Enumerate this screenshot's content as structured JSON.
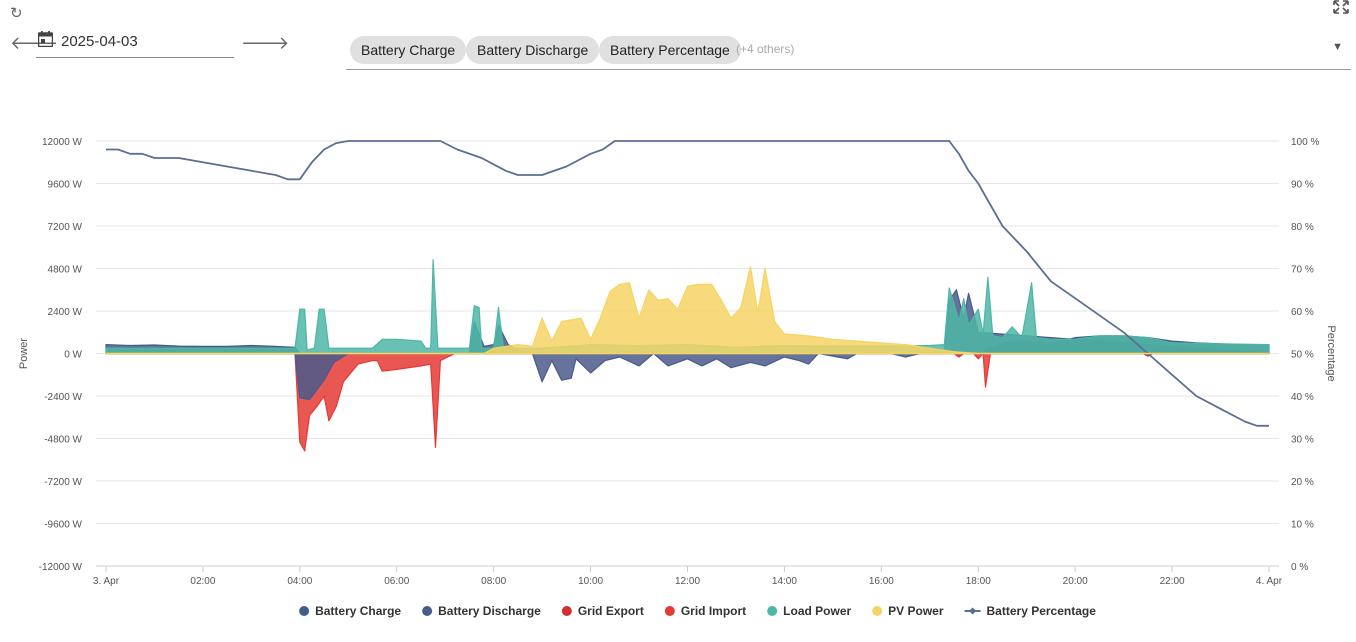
{
  "toolbar": {
    "refresh_icon": "refresh-icon",
    "expand_icon": "fullscreen-icon",
    "prev_icon": "arrow-left-icon",
    "next_icon": "arrow-right-icon",
    "calendar_icon": "calendar-icon",
    "date_value": "2025-04-03"
  },
  "series_select": {
    "chips": [
      "Battery Charge",
      "Battery Discharge",
      "Battery Percentage"
    ],
    "others_label": "(+4 others)"
  },
  "chart_data": {
    "type": "area",
    "x_unit": "hours",
    "xlim": [
      0,
      24
    ],
    "x_ticks": [
      {
        "x": 0,
        "label": "3. Apr"
      },
      {
        "x": 2,
        "label": "02:00"
      },
      {
        "x": 4,
        "label": "04:00"
      },
      {
        "x": 6,
        "label": "06:00"
      },
      {
        "x": 8,
        "label": "08:00"
      },
      {
        "x": 10,
        "label": "10:00"
      },
      {
        "x": 12,
        "label": "12:00"
      },
      {
        "x": 14,
        "label": "14:00"
      },
      {
        "x": 16,
        "label": "16:00"
      },
      {
        "x": 18,
        "label": "18:00"
      },
      {
        "x": 20,
        "label": "20:00"
      },
      {
        "x": 22,
        "label": "22:00"
      },
      {
        "x": 24,
        "label": "4. Apr"
      }
    ],
    "y_left": {
      "label": "Power",
      "ylim": [
        -12000,
        12000
      ],
      "ticks": [
        {
          "v": 12000,
          "label": "12000 W"
        },
        {
          "v": 9600,
          "label": "9600 W"
        },
        {
          "v": 7200,
          "label": "7200 W"
        },
        {
          "v": 4800,
          "label": "4800 W"
        },
        {
          "v": 2400,
          "label": "2400 W"
        },
        {
          "v": 0,
          "label": "0 W"
        },
        {
          "v": -2400,
          "label": "-2400 W"
        },
        {
          "v": -4800,
          "label": "-4800 W"
        },
        {
          "v": -7200,
          "label": "-7200 W"
        },
        {
          "v": -9600,
          "label": "-9600 W"
        },
        {
          "v": -12000,
          "label": "-12000 W"
        }
      ]
    },
    "y_right": {
      "label": "Percentage",
      "ylim": [
        0,
        100
      ],
      "ticks": [
        {
          "v": 100,
          "label": "100 %"
        },
        {
          "v": 90,
          "label": "90 %"
        },
        {
          "v": 80,
          "label": "80 %"
        },
        {
          "v": 70,
          "label": "70 %"
        },
        {
          "v": 60,
          "label": "60 %"
        },
        {
          "v": 50,
          "label": "50 %"
        },
        {
          "v": 40,
          "label": "40 %"
        },
        {
          "v": 30,
          "label": "30 %"
        },
        {
          "v": 20,
          "label": "20 %"
        },
        {
          "v": 10,
          "label": "10 %"
        },
        {
          "v": 0,
          "label": "0 %"
        }
      ]
    },
    "grid": true,
    "legend_position": "bottom-center",
    "series": [
      {
        "name": "Grid Import",
        "axis": "left",
        "kind": "area",
        "color": "#e53935",
        "points": [
          [
            0,
            0
          ],
          [
            3.9,
            0
          ],
          [
            4.0,
            -5000
          ],
          [
            4.1,
            -5500
          ],
          [
            4.2,
            -3500
          ],
          [
            4.35,
            -3000
          ],
          [
            4.5,
            -2400
          ],
          [
            4.6,
            -3800
          ],
          [
            4.75,
            -3000
          ],
          [
            4.9,
            -1600
          ],
          [
            5.2,
            -600
          ],
          [
            5.5,
            -400
          ],
          [
            5.6,
            -400
          ],
          [
            5.7,
            -1000
          ],
          [
            6.0,
            -900
          ],
          [
            6.5,
            -700
          ],
          [
            6.7,
            -600
          ],
          [
            6.8,
            -5300
          ],
          [
            6.9,
            -400
          ],
          [
            7.2,
            0
          ],
          [
            17.9,
            0
          ],
          [
            18.0,
            -300
          ],
          [
            18.1,
            0
          ],
          [
            18.15,
            -1900
          ],
          [
            18.25,
            0
          ],
          [
            24,
            0
          ]
        ]
      },
      {
        "name": "Grid Export",
        "axis": "left",
        "kind": "area",
        "color": "#d32f2f",
        "points": [
          [
            0,
            0
          ],
          [
            17.5,
            0
          ],
          [
            17.6,
            -200
          ],
          [
            17.7,
            0
          ],
          [
            21.4,
            0
          ],
          [
            21.5,
            -150
          ],
          [
            21.6,
            0
          ],
          [
            24,
            0
          ]
        ]
      },
      {
        "name": "Battery Discharge",
        "axis": "left",
        "kind": "area",
        "color": "#4a5a8c",
        "points": [
          [
            0,
            0
          ],
          [
            3.9,
            0
          ],
          [
            4.0,
            -2500
          ],
          [
            4.2,
            -2600
          ],
          [
            4.5,
            -1500
          ],
          [
            4.7,
            -500
          ],
          [
            5.0,
            0
          ],
          [
            8.8,
            0
          ],
          [
            9.0,
            -1600
          ],
          [
            9.2,
            -400
          ],
          [
            9.4,
            -1500
          ],
          [
            9.6,
            -1400
          ],
          [
            9.7,
            -300
          ],
          [
            10.0,
            -1100
          ],
          [
            10.3,
            -400
          ],
          [
            10.6,
            -200
          ],
          [
            11.0,
            -700
          ],
          [
            11.3,
            0
          ],
          [
            11.6,
            -700
          ],
          [
            12.0,
            -300
          ],
          [
            12.3,
            -700
          ],
          [
            12.6,
            -300
          ],
          [
            12.9,
            -800
          ],
          [
            13.3,
            -500
          ],
          [
            13.6,
            -700
          ],
          [
            14.0,
            -200
          ],
          [
            14.3,
            -400
          ],
          [
            14.5,
            -600
          ],
          [
            14.7,
            0
          ],
          [
            15.3,
            -300
          ],
          [
            15.5,
            0
          ],
          [
            16.2,
            0
          ],
          [
            16.5,
            -200
          ],
          [
            16.8,
            0
          ],
          [
            17.3,
            0
          ],
          [
            17.4,
            3000
          ],
          [
            17.55,
            3600
          ],
          [
            17.7,
            2000
          ],
          [
            17.8,
            3400
          ],
          [
            18.0,
            1200
          ],
          [
            24,
            0
          ]
        ]
      },
      {
        "name": "Battery Charge",
        "axis": "left",
        "kind": "area",
        "color": "#3f5f8a",
        "points": [
          [
            0,
            500
          ],
          [
            0.5,
            450
          ],
          [
            1.0,
            480
          ],
          [
            1.5,
            420
          ],
          [
            2.0,
            400
          ],
          [
            2.5,
            400
          ],
          [
            3.0,
            450
          ],
          [
            3.5,
            400
          ],
          [
            3.9,
            350
          ],
          [
            4.0,
            0
          ],
          [
            7.5,
            0
          ],
          [
            7.6,
            1800
          ],
          [
            7.8,
            400
          ],
          [
            8.0,
            500
          ],
          [
            8.1,
            1600
          ],
          [
            8.3,
            500
          ],
          [
            8.5,
            200
          ],
          [
            9.0,
            0
          ],
          [
            17.4,
            0
          ],
          [
            18.0,
            0
          ],
          [
            18.5,
            600
          ],
          [
            19.0,
            700
          ],
          [
            19.5,
            500
          ],
          [
            20.0,
            900
          ],
          [
            20.5,
            1000
          ],
          [
            21.0,
            1000
          ],
          [
            21.5,
            900
          ],
          [
            22.0,
            700
          ],
          [
            22.5,
            600
          ],
          [
            23.0,
            550
          ],
          [
            23.5,
            500
          ],
          [
            24,
            500
          ]
        ]
      },
      {
        "name": "Load Power",
        "axis": "left",
        "kind": "area",
        "color": "#4db6a6",
        "points": [
          [
            0,
            300
          ],
          [
            3.9,
            300
          ],
          [
            4.0,
            2500
          ],
          [
            4.1,
            2500
          ],
          [
            4.15,
            200
          ],
          [
            4.3,
            300
          ],
          [
            4.4,
            2500
          ],
          [
            4.5,
            2500
          ],
          [
            4.6,
            300
          ],
          [
            5.5,
            300
          ],
          [
            5.7,
            800
          ],
          [
            6.0,
            800
          ],
          [
            6.5,
            700
          ],
          [
            6.6,
            300
          ],
          [
            6.7,
            300
          ],
          [
            6.75,
            5300
          ],
          [
            6.85,
            300
          ],
          [
            7.5,
            300
          ],
          [
            7.6,
            2700
          ],
          [
            7.7,
            2600
          ],
          [
            7.75,
            300
          ],
          [
            8.0,
            300
          ],
          [
            8.1,
            2600
          ],
          [
            8.2,
            300
          ],
          [
            9.0,
            300
          ],
          [
            10.0,
            500
          ],
          [
            11.0,
            450
          ],
          [
            12.0,
            500
          ],
          [
            13.0,
            350
          ],
          [
            14.0,
            450
          ],
          [
            15.0,
            400
          ],
          [
            16.0,
            400
          ],
          [
            17.0,
            450
          ],
          [
            17.3,
            500
          ],
          [
            17.4,
            3700
          ],
          [
            17.5,
            2800
          ],
          [
            17.6,
            1800
          ],
          [
            17.7,
            3100
          ],
          [
            17.8,
            1600
          ],
          [
            18.0,
            2500
          ],
          [
            18.1,
            1100
          ],
          [
            18.2,
            4300
          ],
          [
            18.3,
            1000
          ],
          [
            18.5,
            900
          ],
          [
            18.7,
            1500
          ],
          [
            18.9,
            900
          ],
          [
            19.1,
            4000
          ],
          [
            19.2,
            900
          ],
          [
            19.5,
            800
          ],
          [
            20.0,
            800
          ],
          [
            20.5,
            1000
          ],
          [
            21.0,
            1000
          ],
          [
            21.5,
            900
          ],
          [
            22.0,
            600
          ],
          [
            23.0,
            550
          ],
          [
            24,
            500
          ]
        ]
      },
      {
        "name": "PV Power",
        "axis": "left",
        "kind": "area",
        "color": "#f6d365",
        "points": [
          [
            0,
            0
          ],
          [
            7.8,
            0
          ],
          [
            8.0,
            300
          ],
          [
            8.5,
            500
          ],
          [
            8.8,
            400
          ],
          [
            9.0,
            2000
          ],
          [
            9.2,
            700
          ],
          [
            9.4,
            1800
          ],
          [
            9.6,
            1900
          ],
          [
            9.8,
            2000
          ],
          [
            10.0,
            800
          ],
          [
            10.2,
            2000
          ],
          [
            10.4,
            3500
          ],
          [
            10.6,
            3900
          ],
          [
            10.8,
            4000
          ],
          [
            11.0,
            2000
          ],
          [
            11.2,
            3600
          ],
          [
            11.4,
            3000
          ],
          [
            11.6,
            3100
          ],
          [
            11.8,
            2500
          ],
          [
            12.0,
            3800
          ],
          [
            12.2,
            3900
          ],
          [
            12.5,
            3900
          ],
          [
            12.7,
            3000
          ],
          [
            12.9,
            2000
          ],
          [
            13.1,
            2600
          ],
          [
            13.3,
            4900
          ],
          [
            13.45,
            2300
          ],
          [
            13.6,
            4800
          ],
          [
            13.8,
            1800
          ],
          [
            14.0,
            1100
          ],
          [
            14.5,
            1000
          ],
          [
            15.0,
            800
          ],
          [
            15.5,
            700
          ],
          [
            16.0,
            600
          ],
          [
            16.5,
            500
          ],
          [
            17.0,
            300
          ],
          [
            17.5,
            100
          ],
          [
            18.0,
            0
          ],
          [
            24,
            0
          ]
        ]
      },
      {
        "name": "Battery Percentage",
        "axis": "right",
        "kind": "line",
        "color": "#5b6e96",
        "points": [
          [
            0,
            98
          ],
          [
            0.25,
            98
          ],
          [
            0.5,
            97
          ],
          [
            0.75,
            97
          ],
          [
            1.0,
            96
          ],
          [
            1.5,
            96
          ],
          [
            2.0,
            95
          ],
          [
            2.5,
            94
          ],
          [
            3.0,
            93
          ],
          [
            3.5,
            92
          ],
          [
            3.75,
            91
          ],
          [
            4.0,
            91
          ],
          [
            4.25,
            95
          ],
          [
            4.5,
            98
          ],
          [
            4.75,
            99.5
          ],
          [
            5.0,
            100
          ],
          [
            6.9,
            100
          ],
          [
            7.25,
            98
          ],
          [
            7.75,
            96
          ],
          [
            8.25,
            93
          ],
          [
            8.5,
            92
          ],
          [
            8.75,
            92
          ],
          [
            9.0,
            92
          ],
          [
            9.5,
            94
          ],
          [
            10.0,
            97
          ],
          [
            10.25,
            98
          ],
          [
            10.5,
            100
          ],
          [
            17.4,
            100
          ],
          [
            17.6,
            97
          ],
          [
            17.8,
            93
          ],
          [
            18.0,
            90
          ],
          [
            18.2,
            86
          ],
          [
            18.5,
            80
          ],
          [
            19.0,
            74
          ],
          [
            19.5,
            67
          ],
          [
            20.0,
            63
          ],
          [
            20.5,
            59
          ],
          [
            21.0,
            55
          ],
          [
            21.5,
            50
          ],
          [
            22.0,
            45
          ],
          [
            22.5,
            40
          ],
          [
            23.0,
            37
          ],
          [
            23.5,
            34
          ],
          [
            23.75,
            33
          ],
          [
            24,
            33
          ]
        ]
      }
    ],
    "legend": [
      {
        "name": "Battery Charge",
        "color": "#3f5f8a",
        "marker": "dot"
      },
      {
        "name": "Battery Discharge",
        "color": "#4a5a8c",
        "marker": "dot"
      },
      {
        "name": "Grid Export",
        "color": "#d32f2f",
        "marker": "dot"
      },
      {
        "name": "Grid Import",
        "color": "#e53935",
        "marker": "dot"
      },
      {
        "name": "Load Power",
        "color": "#4db6a6",
        "marker": "dot"
      },
      {
        "name": "PV Power",
        "color": "#f6d365",
        "marker": "dot"
      },
      {
        "name": "Battery Percentage",
        "color": "#5b6e96",
        "marker": "line-dot"
      }
    ]
  }
}
